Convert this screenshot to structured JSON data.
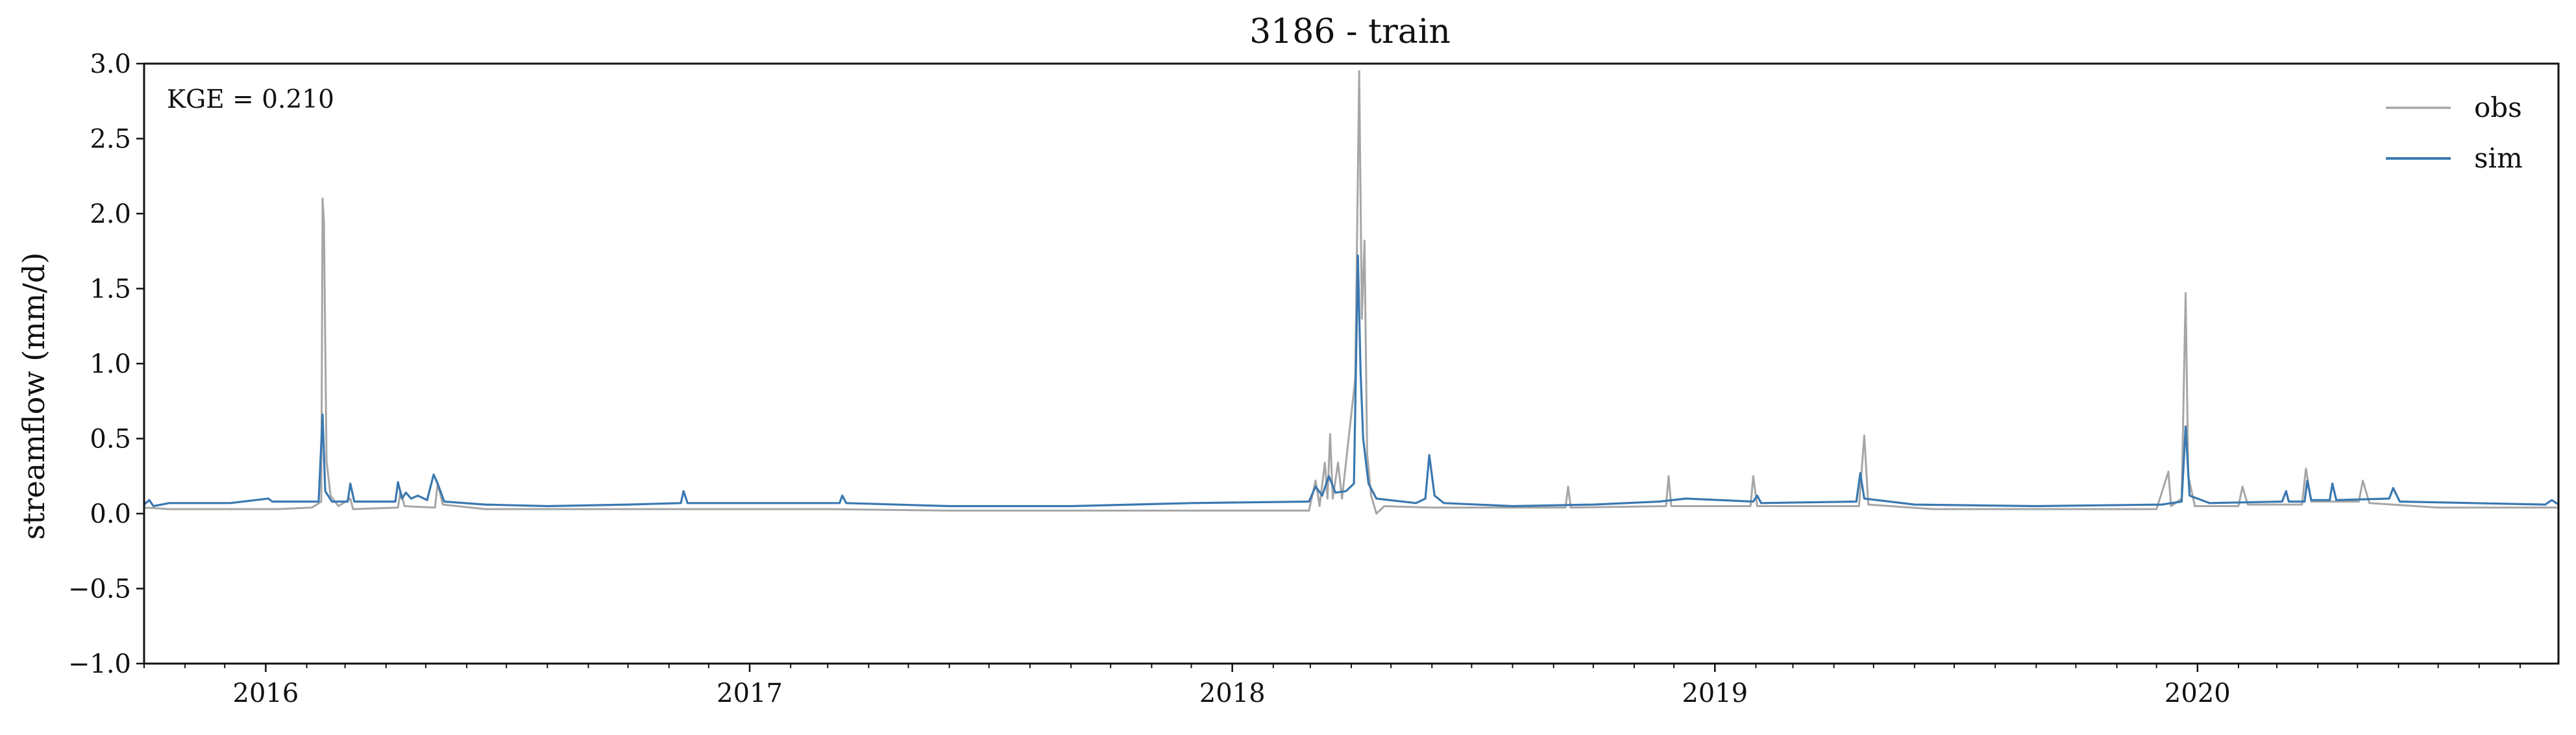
{
  "chart_data": {
    "type": "line",
    "title": "3186 - train",
    "xlabel": "",
    "ylabel": "streamflow (mm/d)",
    "annotation": "KGE = 0.210",
    "x_range": [
      "2015-10-01",
      "2020-09-30"
    ],
    "x_ticks": [
      "2016",
      "2017",
      "2018",
      "2019",
      "2020"
    ],
    "x_tick_dates": [
      "2016-01-01",
      "2017-01-01",
      "2018-01-01",
      "2019-01-01",
      "2020-01-01"
    ],
    "ylim": [
      -1.0,
      3.0
    ],
    "y_ticks": [
      3.0,
      2.5,
      2.0,
      1.5,
      1.0,
      0.5,
      0.0,
      -0.5,
      -1.0
    ],
    "y_tick_labels": [
      "3.0",
      "2.5",
      "2.0",
      "1.5",
      "1.0",
      "0.5",
      "0.0",
      "−0.5",
      "−1.0"
    ],
    "grid": false,
    "legend_position": "top-right",
    "colors": {
      "obs": "#a6a6a6",
      "sim": "#3a78b0"
    },
    "series": [
      {
        "name": "obs",
        "points": [
          [
            "2015-10-01",
            0.04
          ],
          [
            "2015-10-20",
            0.03
          ],
          [
            "2015-11-15",
            0.03
          ],
          [
            "2015-12-10",
            0.03
          ],
          [
            "2016-01-10",
            0.03
          ],
          [
            "2016-02-05",
            0.04
          ],
          [
            "2016-02-12",
            0.08
          ],
          [
            "2016-02-13",
            2.1
          ],
          [
            "2016-02-14",
            1.95
          ],
          [
            "2016-02-16",
            0.35
          ],
          [
            "2016-02-19",
            0.12
          ],
          [
            "2016-02-25",
            0.05
          ],
          [
            "2016-03-05",
            0.1
          ],
          [
            "2016-03-07",
            0.03
          ],
          [
            "2016-04-10",
            0.04
          ],
          [
            "2016-04-12",
            0.15
          ],
          [
            "2016-04-15",
            0.05
          ],
          [
            "2016-05-08",
            0.04
          ],
          [
            "2016-05-10",
            0.2
          ],
          [
            "2016-05-14",
            0.06
          ],
          [
            "2016-06-15",
            0.03
          ],
          [
            "2016-08-01",
            0.03
          ],
          [
            "2016-10-01",
            0.03
          ],
          [
            "2016-12-01",
            0.03
          ],
          [
            "2017-03-01",
            0.03
          ],
          [
            "2017-06-01",
            0.02
          ],
          [
            "2017-09-01",
            0.02
          ],
          [
            "2017-12-01",
            0.02
          ],
          [
            "2018-02-28",
            0.02
          ],
          [
            "2018-03-05",
            0.22
          ],
          [
            "2018-03-08",
            0.05
          ],
          [
            "2018-03-12",
            0.34
          ],
          [
            "2018-03-14",
            0.1
          ],
          [
            "2018-03-16",
            0.53
          ],
          [
            "2018-03-18",
            0.1
          ],
          [
            "2018-03-22",
            0.34
          ],
          [
            "2018-03-25",
            0.1
          ],
          [
            "2018-04-04",
            0.9
          ],
          [
            "2018-04-07",
            2.95
          ],
          [
            "2018-04-09",
            1.3
          ],
          [
            "2018-04-11",
            1.82
          ],
          [
            "2018-04-13",
            0.4
          ],
          [
            "2018-04-16",
            0.12
          ],
          [
            "2018-04-20",
            0.0
          ],
          [
            "2018-04-26",
            0.05
          ],
          [
            "2018-06-01",
            0.04
          ],
          [
            "2018-09-10",
            0.04
          ],
          [
            "2018-09-12",
            0.18
          ],
          [
            "2018-09-14",
            0.04
          ],
          [
            "2018-11-25",
            0.05
          ],
          [
            "2018-11-27",
            0.25
          ],
          [
            "2018-11-29",
            0.05
          ],
          [
            "2019-01-28",
            0.05
          ],
          [
            "2019-01-30",
            0.25
          ],
          [
            "2019-02-02",
            0.05
          ],
          [
            "2019-04-20",
            0.05
          ],
          [
            "2019-04-24",
            0.52
          ],
          [
            "2019-04-27",
            0.06
          ],
          [
            "2019-06-15",
            0.03
          ],
          [
            "2019-09-01",
            0.03
          ],
          [
            "2019-12-01",
            0.03
          ],
          [
            "2019-12-10",
            0.28
          ],
          [
            "2019-12-12",
            0.05
          ],
          [
            "2019-12-20",
            0.1
          ],
          [
            "2019-12-23",
            1.47
          ],
          [
            "2019-12-25",
            0.25
          ],
          [
            "2019-12-30",
            0.05
          ],
          [
            "2020-02-01",
            0.05
          ],
          [
            "2020-02-04",
            0.18
          ],
          [
            "2020-02-08",
            0.06
          ],
          [
            "2020-03-20",
            0.06
          ],
          [
            "2020-03-23",
            0.3
          ],
          [
            "2020-03-27",
            0.08
          ],
          [
            "2020-05-02",
            0.08
          ],
          [
            "2020-05-05",
            0.22
          ],
          [
            "2020-05-10",
            0.07
          ],
          [
            "2020-07-01",
            0.04
          ],
          [
            "2020-09-30",
            0.04
          ]
        ]
      },
      {
        "name": "sim",
        "points": [
          [
            "2015-10-01",
            0.06
          ],
          [
            "2015-10-05",
            0.09
          ],
          [
            "2015-10-08",
            0.05
          ],
          [
            "2015-10-20",
            0.07
          ],
          [
            "2015-11-10",
            0.07
          ],
          [
            "2015-12-05",
            0.07
          ],
          [
            "2016-01-03",
            0.1
          ],
          [
            "2016-01-06",
            0.08
          ],
          [
            "2016-02-10",
            0.08
          ],
          [
            "2016-02-13",
            0.66
          ],
          [
            "2016-02-15",
            0.15
          ],
          [
            "2016-02-20",
            0.08
          ],
          [
            "2016-03-03",
            0.08
          ],
          [
            "2016-03-05",
            0.2
          ],
          [
            "2016-03-08",
            0.08
          ],
          [
            "2016-04-08",
            0.08
          ],
          [
            "2016-04-10",
            0.21
          ],
          [
            "2016-04-13",
            0.1
          ],
          [
            "2016-04-16",
            0.14
          ],
          [
            "2016-04-20",
            0.1
          ],
          [
            "2016-04-25",
            0.12
          ],
          [
            "2016-05-02",
            0.09
          ],
          [
            "2016-05-07",
            0.26
          ],
          [
            "2016-05-10",
            0.2
          ],
          [
            "2016-05-15",
            0.08
          ],
          [
            "2016-06-15",
            0.06
          ],
          [
            "2016-08-01",
            0.05
          ],
          [
            "2016-10-01",
            0.06
          ],
          [
            "2016-11-10",
            0.07
          ],
          [
            "2016-11-12",
            0.15
          ],
          [
            "2016-11-15",
            0.07
          ],
          [
            "2017-01-15",
            0.07
          ],
          [
            "2017-03-10",
            0.07
          ],
          [
            "2017-03-12",
            0.12
          ],
          [
            "2017-03-15",
            0.07
          ],
          [
            "2017-06-01",
            0.05
          ],
          [
            "2017-09-01",
            0.05
          ],
          [
            "2017-12-01",
            0.07
          ],
          [
            "2018-02-28",
            0.08
          ],
          [
            "2018-03-05",
            0.18
          ],
          [
            "2018-03-10",
            0.12
          ],
          [
            "2018-03-15",
            0.25
          ],
          [
            "2018-03-20",
            0.14
          ],
          [
            "2018-03-28",
            0.15
          ],
          [
            "2018-04-03",
            0.2
          ],
          [
            "2018-04-06",
            1.72
          ],
          [
            "2018-04-08",
            0.95
          ],
          [
            "2018-04-10",
            0.5
          ],
          [
            "2018-04-14",
            0.2
          ],
          [
            "2018-04-20",
            0.1
          ],
          [
            "2018-05-20",
            0.07
          ],
          [
            "2018-05-27",
            0.1
          ],
          [
            "2018-05-30",
            0.39
          ],
          [
            "2018-06-03",
            0.12
          ],
          [
            "2018-06-10",
            0.07
          ],
          [
            "2018-08-01",
            0.05
          ],
          [
            "2018-10-01",
            0.06
          ],
          [
            "2018-11-20",
            0.08
          ],
          [
            "2018-12-10",
            0.1
          ],
          [
            "2019-01-30",
            0.08
          ],
          [
            "2019-02-02",
            0.12
          ],
          [
            "2019-02-05",
            0.07
          ],
          [
            "2019-04-18",
            0.08
          ],
          [
            "2019-04-21",
            0.27
          ],
          [
            "2019-04-24",
            0.1
          ],
          [
            "2019-06-01",
            0.06
          ],
          [
            "2019-09-01",
            0.05
          ],
          [
            "2019-12-05",
            0.06
          ],
          [
            "2019-12-20",
            0.08
          ],
          [
            "2019-12-23",
            0.58
          ],
          [
            "2019-12-26",
            0.12
          ],
          [
            "2020-01-10",
            0.07
          ],
          [
            "2020-03-05",
            0.08
          ],
          [
            "2020-03-08",
            0.15
          ],
          [
            "2020-03-10",
            0.08
          ],
          [
            "2020-03-22",
            0.08
          ],
          [
            "2020-03-24",
            0.22
          ],
          [
            "2020-03-27",
            0.09
          ],
          [
            "2020-04-10",
            0.09
          ],
          [
            "2020-04-12",
            0.2
          ],
          [
            "2020-04-15",
            0.09
          ],
          [
            "2020-05-25",
            0.1
          ],
          [
            "2020-05-28",
            0.17
          ],
          [
            "2020-06-02",
            0.08
          ],
          [
            "2020-09-20",
            0.06
          ],
          [
            "2020-09-25",
            0.09
          ],
          [
            "2020-09-30",
            0.06
          ]
        ]
      }
    ]
  }
}
